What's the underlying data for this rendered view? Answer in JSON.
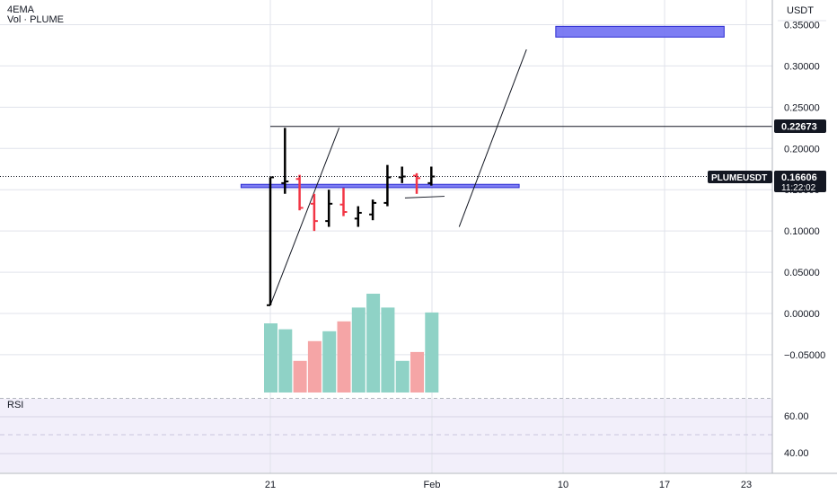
{
  "header": {
    "indicator_label": "4EMA",
    "volume_label": "Vol · PLUME"
  },
  "price_axis": {
    "currency_label": "USDT",
    "ticks": [
      "0.35000",
      "0.30000",
      "0.25000",
      "0.20000",
      "0.15000",
      "0.10000",
      "0.05000",
      "0.00000",
      "−0.05000"
    ],
    "level_label": "0.22673",
    "current_symbol": "PLUMEUSDT",
    "current_price": "0.16606",
    "countdown": "11:22:02"
  },
  "rsi_panel": {
    "title": "RSI",
    "ticks": [
      "60.00",
      "40.00"
    ]
  },
  "time_axis": {
    "ticks": [
      "21",
      "Feb",
      "10",
      "17",
      "23"
    ]
  },
  "colors": {
    "up": "#000000",
    "down": "#f23645",
    "vol_up": "#8fd2c6",
    "vol_down": "#f5a5a6",
    "zone_fill": "#6f6ff2",
    "zone_stroke": "#2b2bd1",
    "rsi_bg": "#f2effa",
    "grid": "#e0e3eb"
  },
  "chart_data": {
    "type": "candlestick",
    "symbol": "PLUMEUSDT",
    "ylim": [
      -0.1,
      0.37
    ],
    "candles": [
      {
        "o": 0.01,
        "h": 0.165,
        "l": 0.01,
        "c": 0.165,
        "dir": "up"
      },
      {
        "o": 0.158,
        "h": 0.225,
        "l": 0.145,
        "c": 0.16,
        "dir": "up"
      },
      {
        "o": 0.163,
        "h": 0.168,
        "l": 0.125,
        "c": 0.128,
        "dir": "down"
      },
      {
        "o": 0.133,
        "h": 0.145,
        "l": 0.1,
        "c": 0.112,
        "dir": "down"
      },
      {
        "o": 0.112,
        "h": 0.15,
        "l": 0.105,
        "c": 0.133,
        "dir": "up"
      },
      {
        "o": 0.132,
        "h": 0.152,
        "l": 0.118,
        "c": 0.123,
        "dir": "down"
      },
      {
        "o": 0.115,
        "h": 0.13,
        "l": 0.105,
        "c": 0.122,
        "dir": "up"
      },
      {
        "o": 0.12,
        "h": 0.138,
        "l": 0.113,
        "c": 0.134,
        "dir": "up"
      },
      {
        "o": 0.134,
        "h": 0.18,
        "l": 0.13,
        "c": 0.165,
        "dir": "up"
      },
      {
        "o": 0.165,
        "h": 0.178,
        "l": 0.158,
        "c": 0.166,
        "dir": "up"
      },
      {
        "o": 0.167,
        "h": 0.17,
        "l": 0.145,
        "c": 0.164,
        "dir": "down"
      },
      {
        "o": 0.158,
        "h": 0.178,
        "l": 0.155,
        "c": 0.166,
        "dir": "up"
      }
    ],
    "volume": [
      {
        "v": 0.7,
        "dir": "up"
      },
      {
        "v": 0.64,
        "dir": "up"
      },
      {
        "v": 0.32,
        "dir": "down"
      },
      {
        "v": 0.52,
        "dir": "down"
      },
      {
        "v": 0.62,
        "dir": "up"
      },
      {
        "v": 0.72,
        "dir": "down"
      },
      {
        "v": 0.86,
        "dir": "up"
      },
      {
        "v": 1.0,
        "dir": "up"
      },
      {
        "v": 0.86,
        "dir": "up"
      },
      {
        "v": 0.32,
        "dir": "up"
      },
      {
        "v": 0.41,
        "dir": "down"
      },
      {
        "v": 0.81,
        "dir": "up"
      }
    ],
    "horizontal_levels": [
      0.22673
    ],
    "zones": [
      {
        "y_top": 0.1565,
        "y_bottom": 0.1525,
        "from_candle": -2,
        "to_candle": 17
      },
      {
        "y_top": 0.348,
        "y_bottom": 0.335,
        "from_candle": 19.5,
        "to_candle": 31
      }
    ],
    "trend_lines": [
      {
        "from": [
          0,
          0.01
        ],
        "to": [
          4.7,
          0.225
        ]
      },
      {
        "from": [
          12.9,
          0.105
        ],
        "to": [
          17.5,
          0.32
        ]
      },
      {
        "from": [
          9.2,
          0.14
        ],
        "to": [
          11.9,
          0.142
        ]
      }
    ]
  }
}
